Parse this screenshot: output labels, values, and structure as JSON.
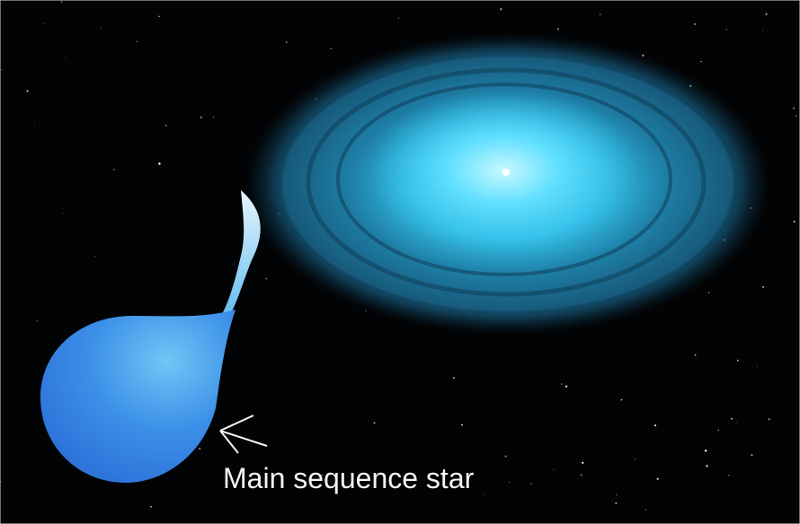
{
  "annotation": "Main sequence star"
}
